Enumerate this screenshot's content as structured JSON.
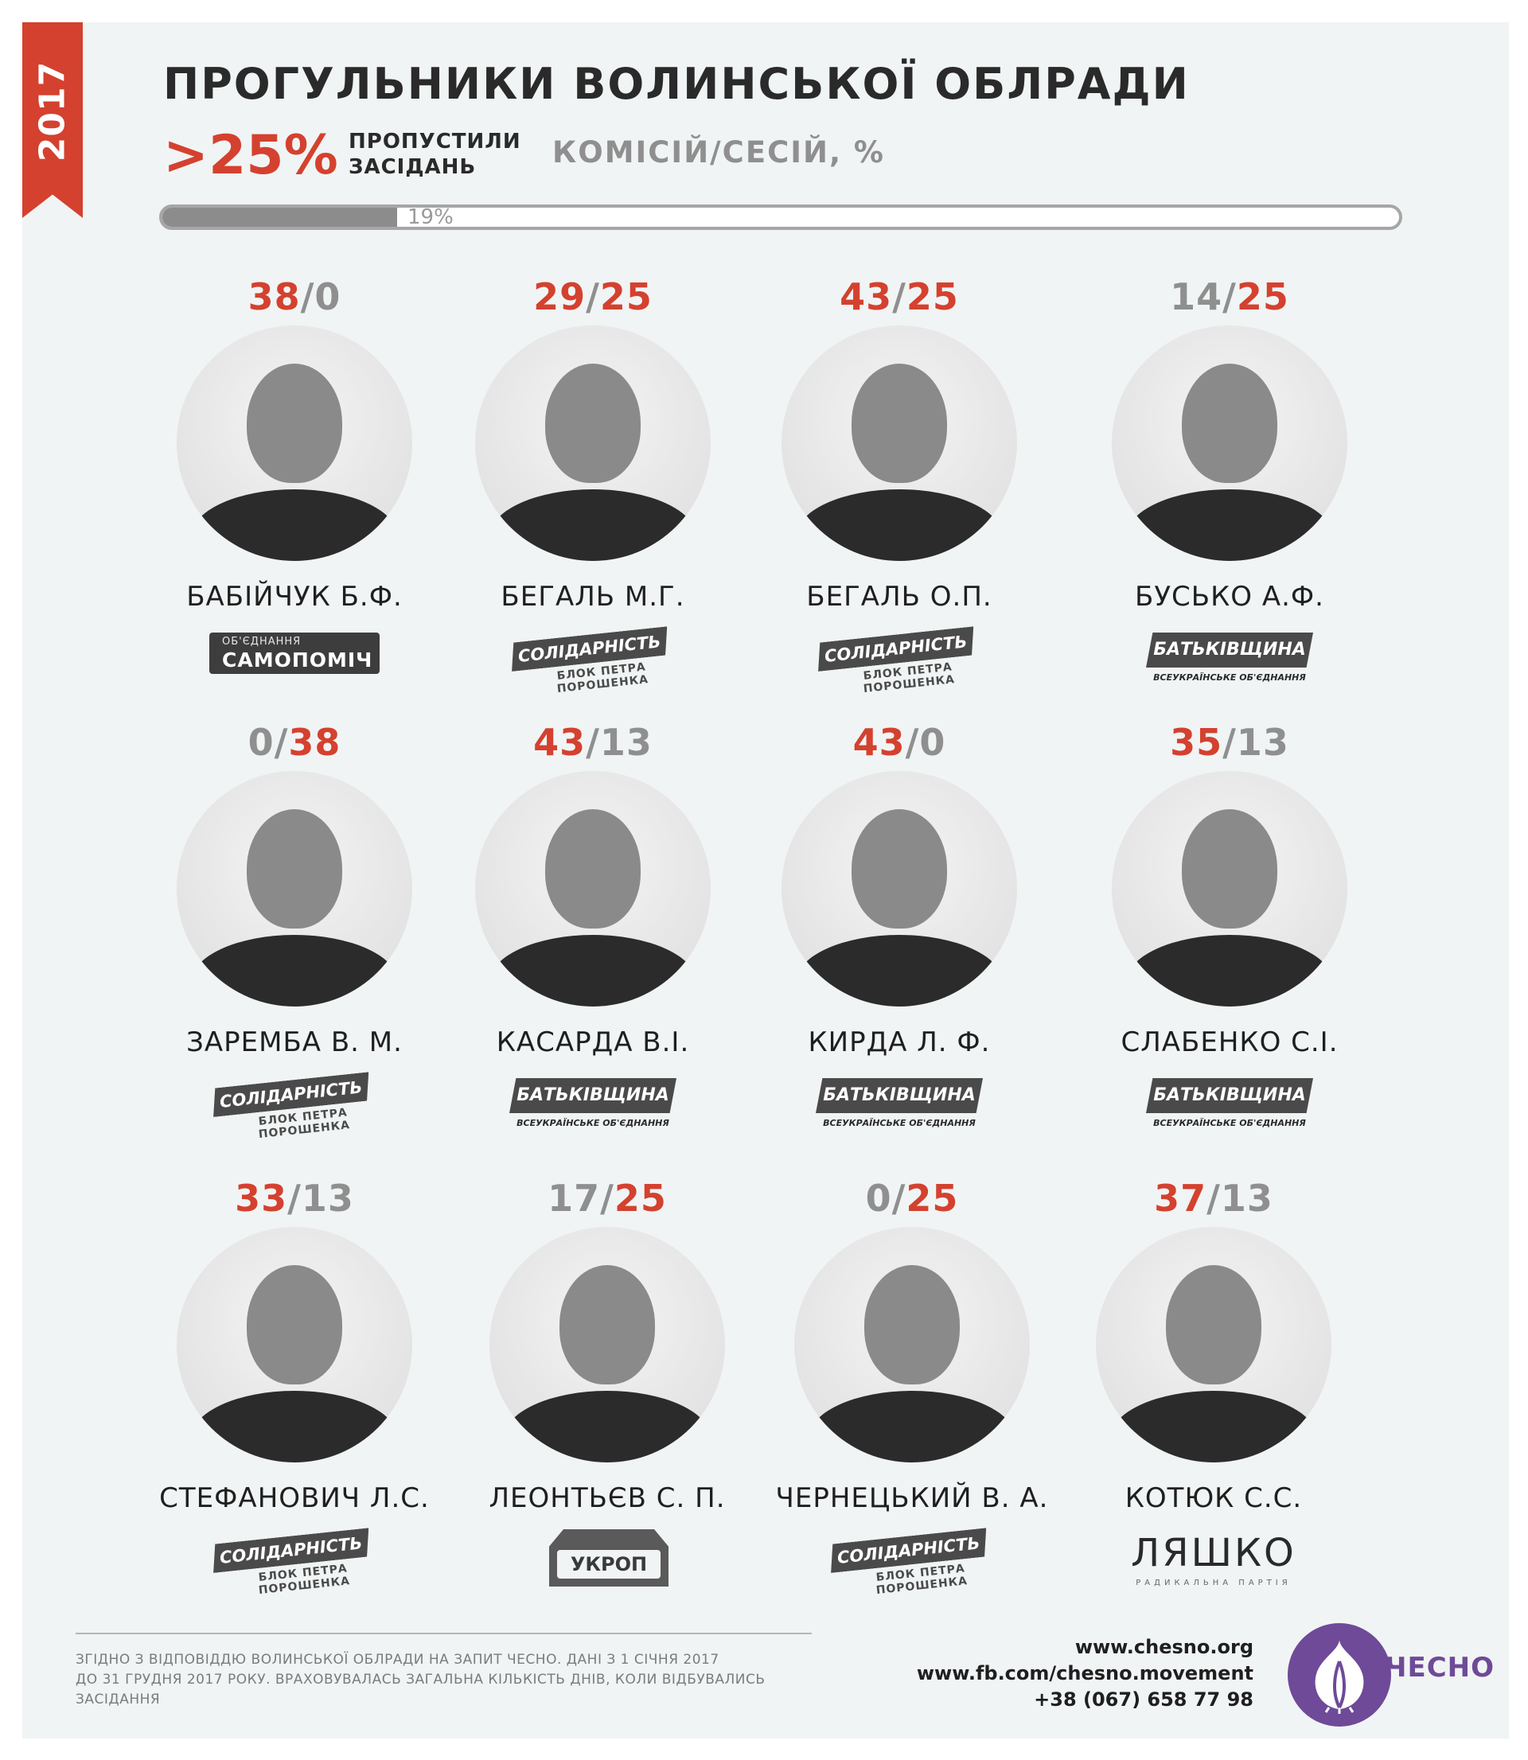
{
  "header": {
    "year": "2017",
    "title": "ПРОГУЛЬНИКИ ВОЛИНСЬКОЇ ОБЛРАДИ",
    "threshold": ">25%",
    "missed_label": "ПРОПУСТИЛИ ЗАСІДАНЬ",
    "units_label": "КОМІСІЙ/СЕСІЙ, %",
    "progress_label": "19%",
    "progress_value": 0.19
  },
  "deputies": [
    {
      "score_a": "38",
      "score_b": "0",
      "a_red": true,
      "b_red": false,
      "name": "БАБІЙЧУК Б.Ф.",
      "party": "samopomich"
    },
    {
      "score_a": "29",
      "score_b": "25",
      "a_red": true,
      "b_red": true,
      "name": "БЕГАЛЬ М.Г.",
      "party": "solidarnist"
    },
    {
      "score_a": "43",
      "score_b": "25",
      "a_red": true,
      "b_red": true,
      "name": "БЕГАЛЬ О.П.",
      "party": "solidarnist"
    },
    {
      "score_a": "14",
      "score_b": "25",
      "a_red": false,
      "b_red": true,
      "name": "БУСЬКО А.Ф.",
      "party": "batkivshchyna"
    },
    {
      "score_a": "0",
      "score_b": "38",
      "a_red": false,
      "b_red": true,
      "name": "ЗАРЕМБА В. М.",
      "party": "solidarnist"
    },
    {
      "score_a": "43",
      "score_b": "13",
      "a_red": true,
      "b_red": false,
      "name": "КАСАРДА В.І.",
      "party": "batkivshchyna"
    },
    {
      "score_a": "43",
      "score_b": "0",
      "a_red": true,
      "b_red": false,
      "name": "КИРДА Л. Ф.",
      "party": "batkivshchyna"
    },
    {
      "score_a": "35",
      "score_b": "13",
      "a_red": true,
      "b_red": false,
      "name": "СЛАБЕНКО С.І.",
      "party": "batkivshchyna"
    },
    {
      "score_a": "33",
      "score_b": "13",
      "a_red": true,
      "b_red": false,
      "name": "СТЕФАНОВИЧ Л.С.",
      "party": "solidarnist"
    },
    {
      "score_a": "17",
      "score_b": "25",
      "a_red": false,
      "b_red": true,
      "name": "ЛЕОНТЬЄВ С. П.",
      "party": "ukrop"
    },
    {
      "score_a": "0",
      "score_b": "25",
      "a_red": false,
      "b_red": true,
      "name": "ЧЕРНЕЦЬКИЙ В. А.",
      "party": "solidarnist"
    },
    {
      "score_a": "37",
      "score_b": "13",
      "a_red": true,
      "b_red": false,
      "name": "КОТЮК С.С.",
      "party": "lyashko"
    }
  ],
  "logos": {
    "samopomich": {
      "small": "ОБ'ЄДНАННЯ",
      "big": "САМОПОМІЧ"
    },
    "solidarnist": {
      "main": "СОЛІДАРНІСТЬ",
      "sub": "БЛОК ПЕТРА ПОРОШЕНКА"
    },
    "batkivshchyna": {
      "main": "БАТЬКІВЩИНА",
      "sub": "ВСЕУКРАЇНСЬКЕ ОБ'ЄДНАННЯ"
    },
    "ukrop": {
      "main": "УКРОП"
    },
    "lyashko": {
      "main": "ЛЯШКО",
      "sub": "РАДИКАЛЬНА ПАРТІЯ"
    }
  },
  "footer": {
    "note_line1": "ЗГІДНО З ВІДПОВІДДЮ ВОЛИНСЬКОЇ ОБЛРАДИ НА ЗАПИТ ЧЕСНО. ДАНІ З 1 СІЧНЯ 2017",
    "note_line2": "ДО 31 ГРУДНЯ 2017 РОКУ. ВРАХОВУВАЛАСЬ ЗАГАЛЬНА КІЛЬКІСТЬ ДНІВ, КОЛИ ВІДБУВАЛИСЬ ЗАСІДАННЯ",
    "website": "www.chesno.org",
    "facebook": "www.fb.com/chesno.movement",
    "phone": "+38 (067) 658 77 98",
    "brand": "ЧЕСНО"
  },
  "colors": {
    "accent": "#d4412f",
    "muted": "#8f8f8f",
    "brand": "#6e4a98"
  }
}
